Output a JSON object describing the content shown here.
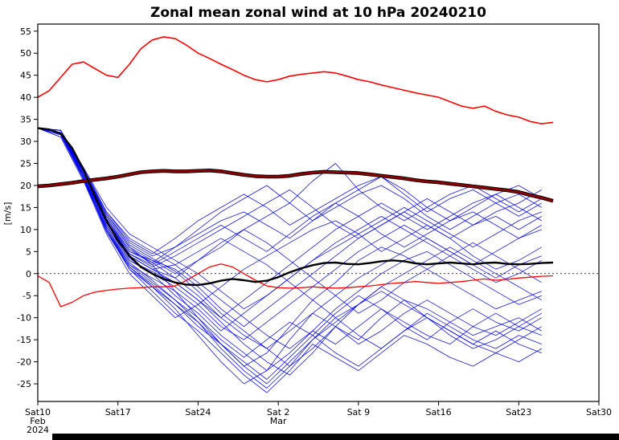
{
  "chart_data": {
    "type": "line",
    "title": "Zonal mean zonal wind at 10 hPa 20240210",
    "xlabel": "",
    "ylabel": "[m/s]",
    "ylim": [
      -29,
      56.6
    ],
    "yticks": [
      -25,
      -20,
      -15,
      -10,
      -5,
      0,
      5,
      10,
      15,
      20,
      25,
      30,
      35,
      40,
      45,
      50,
      55
    ],
    "xlim": [
      0,
      49
    ],
    "xticks": [
      {
        "day": 0,
        "label": "Sat10",
        "sub": [
          "Feb",
          "2024"
        ]
      },
      {
        "day": 7,
        "label": "Sat17",
        "sub": []
      },
      {
        "day": 14,
        "label": "Sat24",
        "sub": []
      },
      {
        "day": 21,
        "label": "Sat 2",
        "sub": [
          "Mar"
        ]
      },
      {
        "day": 28,
        "label": "Sat 9",
        "sub": []
      },
      {
        "day": 35,
        "label": "Sat16",
        "sub": []
      },
      {
        "day": 42,
        "label": "Sat23",
        "sub": []
      },
      {
        "day": 49,
        "label": "Sat30",
        "sub": []
      }
    ],
    "zero_line": true,
    "grid": false,
    "legend": "none",
    "colors": {
      "member": "#0000ee",
      "mean": "#000000",
      "clim_mean": "#8b0000",
      "clim_bound": "#ff0000"
    },
    "days_daily": [
      0,
      1,
      2,
      3,
      4,
      5,
      6,
      7,
      8,
      9,
      10,
      11,
      12,
      13,
      14,
      15,
      16,
      17,
      18,
      19,
      20,
      21,
      22,
      23,
      24,
      25,
      26,
      27,
      28,
      29,
      30,
      31,
      32,
      33,
      34,
      35,
      36,
      37,
      38,
      39,
      40,
      41,
      42,
      43,
      44,
      45
    ],
    "series": [
      {
        "name": "climatological maximum",
        "color_key": "clim_bound",
        "width": 1.6,
        "outline": false,
        "days": "daily",
        "values": [
          40,
          41.5,
          44.5,
          47.5,
          48,
          46.5,
          45,
          44.5,
          47.5,
          51,
          53,
          53.7,
          53.3,
          51.8,
          50,
          48.8,
          47.5,
          46.3,
          45,
          44,
          43.5,
          44,
          44.8,
          45.2,
          45.5,
          45.8,
          45.5,
          44.8,
          44,
          43.5,
          42.8,
          42.2,
          41.6,
          41,
          40.5,
          40,
          39,
          38,
          37.5,
          38,
          36.8,
          36,
          35.5,
          34.5,
          34,
          34.3
        ]
      },
      {
        "name": "climatological minimum",
        "color_key": "clim_bound",
        "width": 1.3,
        "outline": false,
        "days": "daily",
        "values": [
          -0.5,
          -2,
          -7.5,
          -6.5,
          -5,
          -4.2,
          -3.8,
          -3.5,
          -3.3,
          -3.2,
          -3,
          -3,
          -2.8,
          -1.5,
          0,
          1.5,
          2.2,
          1.5,
          0,
          -1.5,
          -2.8,
          -3.2,
          -3.3,
          -3.2,
          -3,
          -3.2,
          -3.3,
          -3.2,
          -3,
          -2.8,
          -2.5,
          -2.2,
          -2,
          -1.8,
          -2,
          -2.2,
          -2,
          -1.8,
          -1.5,
          -1.2,
          -1.5,
          -1.3,
          -1,
          -0.8,
          -0.6,
          -0.5
        ]
      },
      {
        "name": "climatological mean",
        "color_key": "clim_mean",
        "width": 2.8,
        "outline": true,
        "days": "daily",
        "values": [
          19.8,
          20,
          20.3,
          20.6,
          21,
          21.3,
          21.6,
          22,
          22.5,
          23,
          23.2,
          23.3,
          23.2,
          23.2,
          23.3,
          23.4,
          23.2,
          22.8,
          22.4,
          22.1,
          22,
          22,
          22.2,
          22.6,
          22.9,
          23.1,
          23,
          22.9,
          22.8,
          22.5,
          22.2,
          21.9,
          21.6,
          21.2,
          20.9,
          20.7,
          20.4,
          20.1,
          19.8,
          19.5,
          19.2,
          18.9,
          18.5,
          17.8,
          17.2,
          16.5
        ]
      },
      {
        "name": "ensemble mean",
        "color_key": "mean",
        "width": 2.4,
        "outline": false,
        "days": "daily",
        "values": [
          33,
          32.7,
          31.8,
          28.5,
          23.5,
          17.5,
          12,
          7.5,
          4,
          1.5,
          0,
          -1.2,
          -2,
          -2.5,
          -2.6,
          -2.2,
          -1.6,
          -1.2,
          -1.5,
          -1.9,
          -1.6,
          -0.8,
          0.3,
          1.2,
          1.9,
          2.4,
          2.5,
          2.2,
          2.1,
          2.4,
          2.8,
          3,
          2.8,
          2.3,
          2.1,
          2.3,
          2.5,
          2.3,
          2.1,
          2.4,
          2.5,
          2.2,
          2.1,
          2.2,
          2.4,
          2.5
        ]
      }
    ],
    "members_days": [
      0,
      2,
      4,
      6,
      8,
      10,
      12,
      14,
      16,
      18,
      20,
      22,
      24,
      26,
      28,
      30,
      32,
      34,
      36,
      38,
      40,
      42,
      44
    ],
    "members": [
      [
        33,
        32,
        23,
        13,
        6,
        2,
        -4,
        -10,
        -16,
        -21,
        -18,
        -12,
        -6,
        -2,
        3,
        6,
        4,
        1,
        -2,
        -5,
        -8,
        -6,
        -4
      ],
      [
        33,
        31.5,
        22,
        10,
        1,
        -3,
        -8,
        -14,
        -20,
        -25,
        -22,
        -15,
        -9,
        -12,
        -15,
        -10,
        -6,
        -8,
        -11,
        -14,
        -12,
        -10,
        -13
      ],
      [
        33,
        32.5,
        24,
        14,
        8,
        5,
        2,
        -2,
        -6,
        -10,
        -14,
        -17,
        -13,
        -8,
        -4,
        0,
        3,
        5,
        2,
        -1,
        -4,
        -7,
        -5
      ],
      [
        33,
        31,
        21,
        9,
        0,
        -5,
        -10,
        -7,
        -3,
        1,
        4,
        7,
        10,
        12,
        9,
        5,
        8,
        11,
        8,
        4,
        1,
        3,
        6
      ],
      [
        33,
        32,
        22.5,
        12,
        4,
        1,
        -2,
        -6,
        -11,
        -16,
        -20,
        -23,
        -18,
        -12,
        -7,
        -3,
        -6,
        -10,
        -13,
        -16,
        -18,
        -15,
        -12
      ],
      [
        33,
        32,
        23.5,
        13.5,
        7,
        4,
        6,
        9,
        12,
        14,
        11,
        8,
        12,
        15,
        18,
        20,
        17,
        13,
        10,
        13,
        16,
        18,
        15
      ],
      [
        33,
        31.5,
        21.5,
        10.5,
        2,
        -2,
        -6,
        -11,
        -17,
        -22,
        -26,
        -21,
        -15,
        -10,
        -14,
        -17,
        -13,
        -9,
        -12,
        -15,
        -17,
        -14,
        -16
      ],
      [
        33,
        32.5,
        23,
        12.5,
        5,
        3,
        0,
        3,
        7,
        10,
        13,
        16,
        21,
        25,
        19,
        15,
        12,
        15,
        18,
        20,
        17,
        14,
        17
      ],
      [
        33,
        32,
        22,
        11,
        3,
        0,
        -3,
        -7,
        -12,
        -15,
        -11,
        -7,
        -3,
        1,
        5,
        8,
        11,
        8,
        5,
        2,
        5,
        8,
        10
      ],
      [
        33,
        31.5,
        21.5,
        9.5,
        1,
        -4,
        -9,
        -13,
        -18,
        -23,
        -27,
        -22,
        -16,
        -19,
        -22,
        -18,
        -14,
        -16,
        -19,
        -21,
        -18,
        -20,
        -17
      ],
      [
        33,
        32.5,
        24,
        15,
        9,
        6,
        3,
        0,
        -4,
        -8,
        -5,
        -1,
        3,
        6,
        9,
        12,
        15,
        12,
        9,
        6,
        9,
        12,
        14
      ],
      [
        33,
        32,
        23,
        12,
        4,
        1,
        -1,
        3,
        6,
        10,
        7,
        3,
        -1,
        -5,
        -9,
        -6,
        -2,
        1,
        4,
        7,
        4,
        1,
        -2
      ],
      [
        33,
        31.5,
        22.5,
        11.5,
        3.5,
        0,
        -5,
        -9,
        -14,
        -18,
        -22,
        -18,
        -13,
        -16,
        -12,
        -8,
        -11,
        -14,
        -16,
        -12,
        -9,
        -12,
        -14
      ],
      [
        33,
        32,
        23.5,
        14,
        7.5,
        4.5,
        8,
        12,
        15,
        18,
        15,
        11,
        14,
        17,
        20,
        22,
        18,
        14,
        17,
        19,
        16,
        13,
        16
      ],
      [
        33,
        31,
        21,
        10,
        2,
        -1,
        -4,
        -8,
        -13,
        -9,
        -5,
        -1,
        3,
        7,
        10,
        13,
        10,
        7,
        4,
        1,
        -2,
        0,
        3
      ],
      [
        33,
        32,
        22,
        11.5,
        4.5,
        2,
        5,
        8,
        11,
        8,
        5,
        9,
        13,
        16,
        13,
        9,
        6,
        9,
        12,
        14,
        11,
        8,
        11
      ],
      [
        33,
        31.5,
        22,
        10,
        1.5,
        -3,
        -7,
        -12,
        -16,
        -20,
        -24,
        -19,
        -14,
        -9,
        -5,
        -8,
        -12,
        -15,
        -11,
        -8,
        -11,
        -13,
        -10
      ],
      [
        33,
        32.5,
        23.5,
        13,
        6,
        3,
        1,
        -3,
        -8,
        -12,
        -8,
        -4,
        0,
        4,
        8,
        11,
        14,
        11,
        8,
        11,
        13,
        10,
        13
      ],
      [
        33,
        32,
        23,
        12.5,
        5.5,
        2.5,
        -1,
        -5,
        -10,
        -14,
        -17,
        -13,
        -9,
        -5,
        -1,
        2,
        5,
        8,
        5,
        2,
        -1,
        2,
        4
      ],
      [
        33,
        31.5,
        21.5,
        10.5,
        2.5,
        -1.5,
        -6,
        -10,
        -15,
        -19,
        -15,
        -11,
        -14,
        -18,
        -21,
        -17,
        -13,
        -10,
        -13,
        -16,
        -13,
        -16,
        -18
      ],
      [
        33,
        32,
        22.5,
        12,
        4.5,
        1.5,
        4,
        7,
        10,
        13,
        16,
        19,
        15,
        11,
        8,
        11,
        14,
        17,
        14,
        11,
        14,
        16,
        19
      ],
      [
        33,
        31.5,
        22,
        11,
        3,
        0.5,
        -2,
        -6,
        -10,
        -6,
        -2,
        2,
        6,
        10,
        13,
        16,
        13,
        10,
        13,
        16,
        18,
        15,
        12
      ],
      [
        33,
        32,
        23,
        13.5,
        6.5,
        3.5,
        0.5,
        -4,
        -9,
        -13,
        -17,
        -21,
        -17,
        -12,
        -16,
        -13,
        -9,
        -6,
        -9,
        -12,
        -14,
        -11,
        -8
      ],
      [
        33,
        32.5,
        23.5,
        12,
        5,
        2.5,
        6,
        10,
        14,
        17,
        20,
        16,
        12,
        16,
        19,
        22,
        19,
        15,
        12,
        15,
        18,
        20,
        17
      ],
      [
        33,
        31.5,
        21.5,
        9.5,
        1.5,
        -2.5,
        -7,
        -11,
        -16,
        -21,
        -25,
        -20,
        -15,
        -11,
        -7,
        -4,
        -7,
        -10,
        -14,
        -17,
        -15,
        -12,
        -9
      ],
      [
        33,
        32,
        22.5,
        11.5,
        4,
        1,
        2,
        5,
        8,
        5,
        2,
        -2,
        -6,
        -10,
        -7,
        -3,
        0,
        3,
        6,
        3,
        0,
        -3,
        -6
      ]
    ]
  }
}
